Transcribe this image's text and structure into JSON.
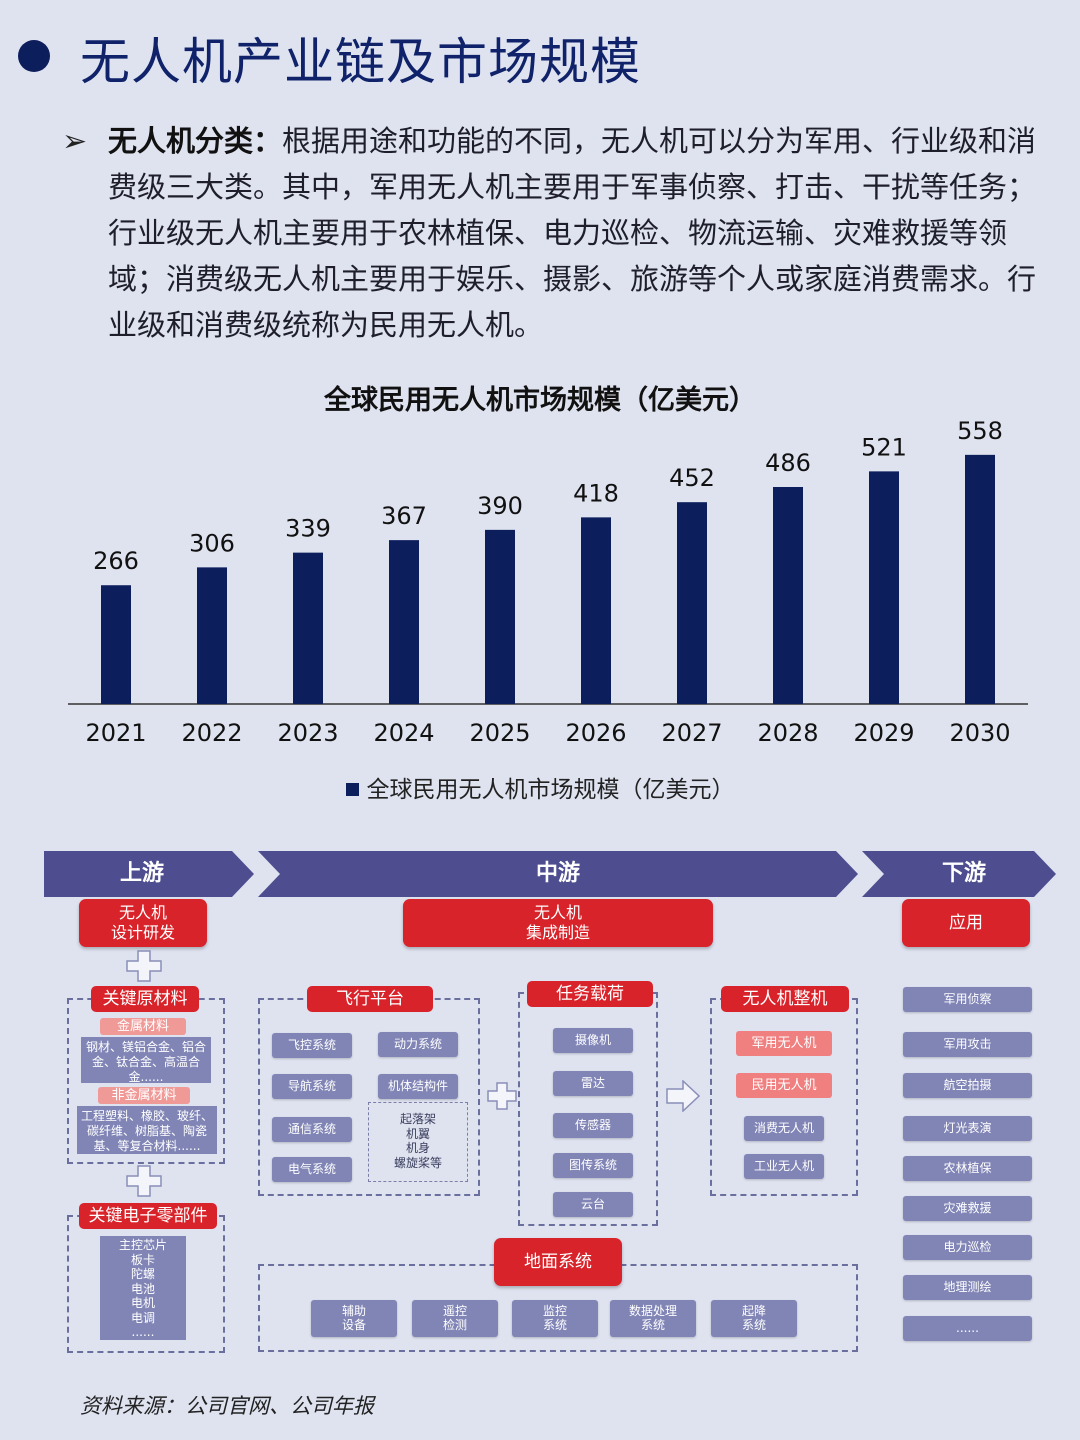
{
  "header": {
    "title": "无人机产业链及市场规模"
  },
  "intro": {
    "lead": "无人机分类：",
    "body": "根据用途和功能的不同，无人机可以分为军用、行业级和消费级三大类。其中，军用无人机主要用于军事侦察、打击、干扰等任务；行业级无人机主要用于农林植保、电力巡检、物流运输、灾难救援等领域；消费级无人机主要用于娱乐、摄影、旅游等个人或家庭消费需求。行业级和消费级统称为民用无人机。"
  },
  "chart_data": {
    "type": "bar",
    "title": "全球民用无人机市场规模（亿美元）",
    "categories": [
      "2021",
      "2022",
      "2023",
      "2024",
      "2025",
      "2026",
      "2027",
      "2028",
      "2029",
      "2030"
    ],
    "series": [
      {
        "name": "全球民用无人机市场规模（亿美元）",
        "values": [
          266,
          306,
          339,
          367,
          390,
          418,
          452,
          486,
          521,
          558
        ]
      }
    ],
    "xlabel": "",
    "ylabel": "",
    "legend": "bottom",
    "grid": false,
    "bar_color": "#0d1e5c"
  },
  "chain": {
    "upstream": {
      "label": "上游",
      "header": "无人机\n设计研发",
      "materials": {
        "title": "关键原材料",
        "metal_title": "金属材料",
        "metal_text": "钢材、镁铝合金、铝合金、钛合金、高温合金......",
        "nonmetal_title": "非金属材料",
        "nonmetal_text": "工程塑料、橡胶、玻纤、碳纤维、树脂基、陶瓷基、等复合材料......"
      },
      "electronics": {
        "title": "关键电子零部件",
        "items": [
          "主控芯片",
          "板卡",
          "陀螺",
          "电池",
          "电机",
          "电调",
          "......"
        ]
      }
    },
    "midstream": {
      "label": "中游",
      "header": "无人机\n集成制造",
      "flight_platform": {
        "title": "飞行平台",
        "left_items": [
          "飞控系统",
          "导航系统",
          "通信系统",
          "电气系统"
        ],
        "power": "动力系统",
        "structure": "机体结构件",
        "structure_items": [
          "起落架",
          "机翼",
          "机身",
          "螺旋桨等"
        ]
      },
      "payload": {
        "title": "任务载荷",
        "items": [
          "摄像机",
          "雷达",
          "传感器",
          "图传系统",
          "云台"
        ]
      },
      "complete": {
        "title": "无人机整机",
        "red_items": [
          "军用无人机",
          "民用无人机"
        ],
        "gray_items": [
          "消费无人机",
          "工业无人机"
        ]
      },
      "ground": {
        "title": "地面系统",
        "items": [
          "辅助\n设备",
          "遥控\n检测",
          "监控\n系统",
          "数据处理\n系统",
          "起降\n系统"
        ]
      }
    },
    "downstream": {
      "label": "下游",
      "header": "应用",
      "items": [
        "军用侦察",
        "军用攻击",
        "航空拍摄",
        "灯光表演",
        "农林植保",
        "灾难救援",
        "电力巡检",
        "地理测绘",
        "......"
      ]
    }
  },
  "source": "资料来源：公司官网、公司年报",
  "colors": {
    "navy": "#0d1e5c",
    "arrow_purple": "#4d4d8f",
    "red": "#d9232a",
    "box_gray": "#8185b6",
    "pink": "#f09a98",
    "background": "#dfe3f0"
  }
}
